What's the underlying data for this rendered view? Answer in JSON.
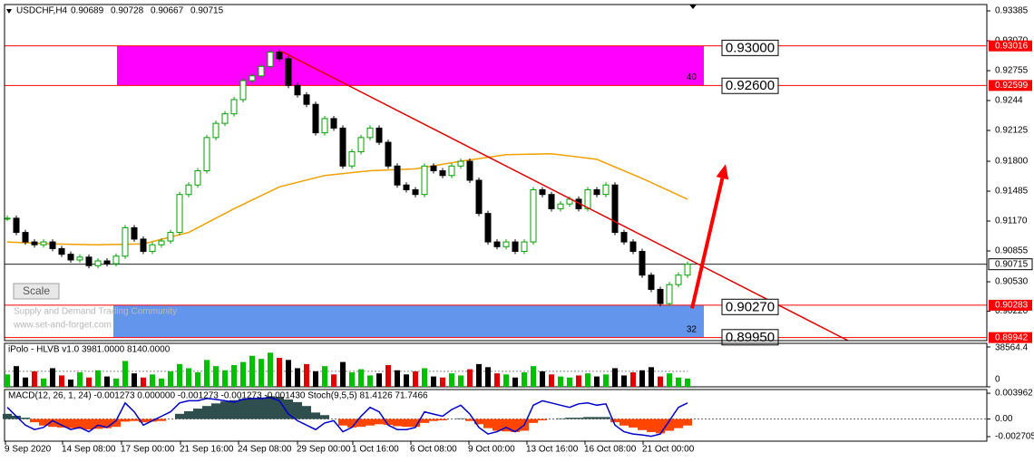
{
  "chart_data": {
    "type": "candlestick",
    "symbol": "USDCHF,H4",
    "quote": [
      0.90689,
      0.90728,
      0.90667,
      0.90715
    ],
    "ylim": [
      0.8991,
      0.93452
    ],
    "yticks": [
      0.93385,
      {
        "value": 0.9307,
        "label": "0.93070"
      },
      0.92755,
      0.9244,
      0.92125,
      {
        "value": 0.918,
        "label": "0.91800"
      },
      0.91485,
      {
        "value": 0.9117,
        "label": "0.91170"
      },
      0.90855,
      {
        "value": 0.9053,
        "label": "0.90530"
      },
      {
        "value": 0.9022,
        "label": "0.90220"
      }
    ],
    "closes": [
      0.912,
      0.9105,
      0.9095,
      0.9092,
      0.9095,
      0.9088,
      0.9082,
      0.9076,
      0.9079,
      0.907,
      0.9075,
      0.9072,
      0.908,
      0.911,
      0.9098,
      0.9085,
      0.9092,
      0.9096,
      0.9105,
      0.9145,
      0.9155,
      0.917,
      0.9205,
      0.922,
      0.923,
      0.9245,
      0.9265,
      0.927,
      0.928,
      0.9295,
      0.9288,
      0.926,
      0.925,
      0.924,
      0.921,
      0.9225,
      0.9215,
      0.9175,
      0.919,
      0.9205,
      0.9215,
      0.92,
      0.9175,
      0.9155,
      0.915,
      0.9145,
      0.9175,
      0.917,
      0.9165,
      0.9175,
      0.918,
      0.916,
      0.9125,
      0.9095,
      0.909,
      0.9095,
      0.9085,
      0.9095,
      0.915,
      0.9145,
      0.913,
      0.9135,
      0.914,
      0.913,
      0.915,
      0.9145,
      0.9155,
      0.9105,
      0.9095,
      0.9085,
      0.906,
      0.9045,
      0.903,
      0.905,
      0.906,
      0.90715
    ],
    "bull_color": "#00a000",
    "bear_color": "#000000",
    "ma": [
      0.9095,
      0.9093,
      0.9092,
      0.9093,
      0.9105,
      0.913,
      0.9153,
      0.9165,
      0.917,
      0.9172,
      0.918,
      0.9187,
      0.9188,
      0.9182,
      0.9162,
      0.914
    ],
    "ma_color": "#f0a000",
    "current_price": 0.90715,
    "levels": [
      {
        "value": 0.93016,
        "color": "#ff0000"
      },
      {
        "value": 0.92599,
        "color": "#ff0000"
      },
      {
        "value": 0.90283,
        "color": "#ff0000"
      },
      {
        "value": 0.89942,
        "color": "#ff0000"
      }
    ],
    "zones": [
      {
        "top": 0.93016,
        "bottom": 0.92599,
        "color": "#ff00ff",
        "label": 40
      },
      {
        "top": 0.90283,
        "bottom": 0.89942,
        "color": "#6495ed",
        "label": 32
      }
    ],
    "level_boxes": [
      {
        "value": 0.93,
        "label": "0.93000"
      },
      {
        "value": 0.926,
        "label": "0.92600"
      },
      {
        "value": 0.9027,
        "label": "0.90270"
      },
      {
        "value": 0.8995,
        "label": "0.89950"
      }
    ],
    "trendline": {
      "from": {
        "index": 30.2,
        "price": 0.9296
      },
      "to": {
        "index": 92.7,
        "price": 0.8991
      },
      "color": "#e00000"
    },
    "arrow": {
      "from": {
        "index": 75.5,
        "price": 0.9025
      },
      "to": {
        "index": 79.2,
        "price": 0.9177
      },
      "color": "#ff0000"
    },
    "watermark": [
      "Supply and Demand Trading Community",
      "www.set-and-forget.com"
    ],
    "scale_button": "Scale",
    "x_labels": [
      "9 Sep 2020",
      "14 Sep 08:00",
      "17 Sep 00:00",
      "21 Sep 16:00",
      "24 Sep 08:00",
      "29 Sep 00:00",
      "1 Oct 16:00",
      "6 Oct 08:00",
      "9 Oct 00:00",
      "13 Oct 16:00",
      "16 Oct 08:00",
      "21 Oct 00:00"
    ],
    "volume_panel": {
      "label": "iPolo - HLVB v1.0 3981.0000 8140.0000",
      "ylim": [
        0,
        38564.4
      ],
      "yticks": [
        38564.4,
        0
      ],
      "values": [
        12000,
        20000,
        9000,
        15000,
        8000,
        18000,
        11000,
        7000,
        14000,
        9000,
        16000,
        10000,
        8000,
        25000,
        13000,
        9000,
        12000,
        8000,
        15000,
        22000,
        18000,
        14000,
        26000,
        20000,
        16000,
        21000,
        24000,
        30000,
        27000,
        33000,
        28000,
        26000,
        18000,
        22000,
        15000,
        20000,
        12000,
        24000,
        14000,
        17000,
        11000,
        13000,
        21000,
        16000,
        12000,
        15000,
        18000,
        10000,
        9000,
        13000,
        11000,
        17000,
        22000,
        19000,
        13000,
        12000,
        9000,
        14000,
        20000,
        15000,
        12000,
        10000,
        9000,
        11000,
        13000,
        10000,
        12000,
        18000,
        11000,
        14000,
        16000,
        19000,
        10000,
        13000,
        9000,
        8000
      ]
    },
    "macd_panel": {
      "label": "MACD(12, 26, 1, 24) -0.001273 0.000000 -0.001273 -0.001273 -0.001430  Stoch(9,5,5) 81.4126 71.7466",
      "ylim": [
        -0.0034,
        0.00453
      ],
      "yticks": [
        0.003962,
        {
          "value": 0,
          "label": "0.00"
        },
        -0.002705
      ],
      "positive_color": "#2f4f4f",
      "negative_color": "#ff4500",
      "stoch_color": "#0000cc",
      "stoch_lim": [
        0,
        100
      ],
      "histogram": [
        0.0008,
        0.0005,
        0.0002,
        -0.0005,
        -0.001,
        -0.0012,
        -0.0013,
        -0.0014,
        -0.0015,
        -0.0016,
        -0.0015,
        -0.0014,
        -0.0012,
        -0.0004,
        -0.0003,
        -0.0005,
        -0.0004,
        -0.0003,
        0,
        0.0008,
        0.0012,
        0.0016,
        0.002,
        0.0024,
        0.0027,
        0.0029,
        0.0031,
        0.0032,
        0.0033,
        0.0035,
        0.0034,
        0.003,
        0.0026,
        0.002,
        0.001,
        0.0006,
        0,
        -0.001,
        -0.0013,
        -0.0012,
        -0.001,
        -0.0008,
        -0.0009,
        -0.0011,
        -0.0012,
        -0.0012,
        -0.0006,
        -0.0003,
        -0.0002,
        0,
        0.0001,
        -0.0003,
        -0.0008,
        -0.0014,
        -0.0018,
        -0.0019,
        -0.002,
        -0.0018,
        -0.0006,
        -0.0002,
        0,
        0.0001,
        0.0002,
        0.0002,
        0.0003,
        0.0003,
        0.0003,
        -0.0005,
        -0.001,
        -0.0013,
        -0.0017,
        -0.002,
        -0.0022,
        -0.0018,
        -0.0014,
        -0.001
      ],
      "stoch": [
        70,
        50,
        30,
        20,
        25,
        40,
        30,
        20,
        25,
        15,
        30,
        25,
        40,
        80,
        60,
        30,
        40,
        50,
        60,
        80,
        85,
        85,
        90,
        88,
        85,
        82,
        88,
        90,
        90,
        92,
        85,
        55,
        40,
        30,
        20,
        35,
        40,
        15,
        25,
        50,
        70,
        60,
        30,
        20,
        20,
        25,
        60,
        55,
        50,
        65,
        75,
        55,
        25,
        10,
        15,
        25,
        15,
        30,
        75,
        85,
        80,
        75,
        70,
        78,
        80,
        75,
        78,
        30,
        15,
        10,
        8,
        5,
        10,
        40,
        70,
        80
      ]
    }
  }
}
